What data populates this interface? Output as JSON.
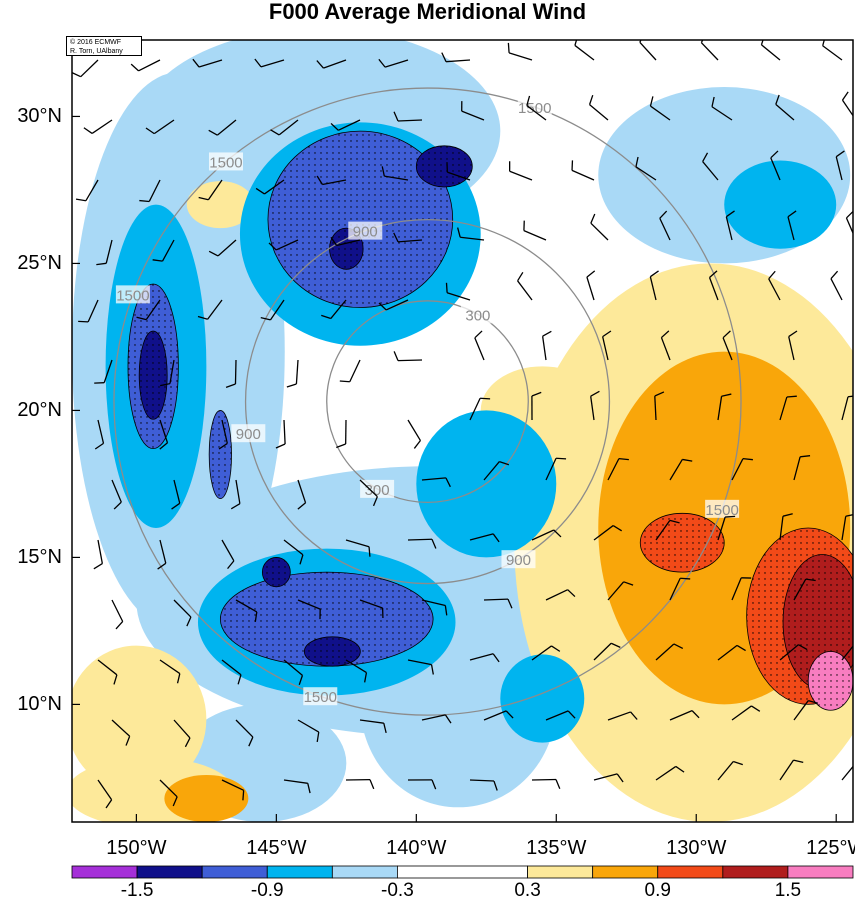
{
  "chart_data": {
    "type": "heatmap",
    "title": "F000 Average Meridional Wind",
    "credit_line1": "© 2016 ECMWF",
    "credit_line2": "R. Torn, UAlbany",
    "x_ticks": [
      "150°W",
      "145°W",
      "140°W",
      "135°W",
      "130°W",
      "125°W"
    ],
    "x_tick_values": [
      -150,
      -145,
      -140,
      -135,
      -130,
      -125
    ],
    "y_ticks": [
      "30°N",
      "25°N",
      "20°N",
      "15°N",
      "10°N"
    ],
    "y_tick_values": [
      30,
      25,
      20,
      15,
      10
    ],
    "xlim": [
      -152.3,
      -124.4
    ],
    "ylim": [
      6.0,
      32.6
    ],
    "colorbar": {
      "levels": [
        -1.8,
        -1.5,
        -1.2,
        -0.9,
        -0.6,
        -0.3,
        0.3,
        0.6,
        0.9,
        1.2,
        1.5,
        1.8
      ],
      "colors": [
        "#a52fd8",
        "#10108a",
        "#3f5ed6",
        "#00b4ef",
        "#a9d9f6",
        "#ffffff",
        "#fde99a",
        "#f9a60a",
        "#f24a18",
        "#b01d1d",
        "#f87dc0"
      ],
      "tick_labels": [
        "-1.5",
        "-0.9",
        "-0.3",
        "0.3",
        "0.9",
        "1.5"
      ],
      "tick_values": [
        -1.5,
        -0.9,
        -0.3,
        0.3,
        0.9,
        1.5
      ]
    },
    "contour_center": {
      "lon": -139.6,
      "lat": 20.3
    },
    "contour_labels": [
      "300",
      "900",
      "1500"
    ],
    "contour_radii_deg": [
      3.6,
      6.5,
      11.2
    ],
    "shaded_regions": [
      {
        "value": -0.45,
        "center": [
          -139.5,
          13.5
        ],
        "radii": [
          10.5,
          4.6
        ]
      },
      {
        "value": -0.45,
        "center": [
          -148.5,
          22.0
        ],
        "radii": [
          3.8,
          9.5
        ]
      },
      {
        "value": -0.45,
        "center": [
          -143.5,
          29.5
        ],
        "radii": [
          6.5,
          3.5
        ]
      },
      {
        "value": -0.45,
        "center": [
          -129.0,
          28.0
        ],
        "radii": [
          4.5,
          3.0
        ]
      },
      {
        "value": -0.45,
        "center": [
          -138.5,
          10.0
        ],
        "radii": [
          3.5,
          3.5
        ]
      },
      {
        "value": -0.45,
        "center": [
          -145.5,
          8.0
        ],
        "radii": [
          3.0,
          2.0
        ]
      },
      {
        "value": -0.75,
        "center": [
          -143.2,
          12.8
        ],
        "radii": [
          4.6,
          2.5
        ]
      },
      {
        "value": -0.75,
        "center": [
          -149.3,
          21.5
        ],
        "radii": [
          1.8,
          5.5
        ]
      },
      {
        "value": -0.75,
        "center": [
          -142.0,
          26.0
        ],
        "radii": [
          4.3,
          3.8
        ]
      },
      {
        "value": -0.75,
        "center": [
          -137.5,
          17.5
        ],
        "radii": [
          2.5,
          2.5
        ]
      },
      {
        "value": -0.75,
        "center": [
          -135.5,
          10.2
        ],
        "radii": [
          1.5,
          1.5
        ]
      },
      {
        "value": -0.75,
        "center": [
          -127.0,
          27.0
        ],
        "radii": [
          2.0,
          1.5
        ]
      },
      {
        "value": -1.05,
        "center": [
          -143.2,
          12.9
        ],
        "radii": [
          3.8,
          1.6
        ]
      },
      {
        "value": -1.05,
        "center": [
          -142.0,
          26.5
        ],
        "radii": [
          3.3,
          3.0
        ]
      },
      {
        "value": -1.05,
        "center": [
          -149.4,
          21.5
        ],
        "radii": [
          0.9,
          2.8
        ]
      },
      {
        "value": -1.05,
        "center": [
          -147.0,
          18.5
        ],
        "radii": [
          0.4,
          1.5
        ]
      },
      {
        "value": -1.35,
        "center": [
          -149.4,
          21.2
        ],
        "radii": [
          0.5,
          1.5
        ]
      },
      {
        "value": -1.35,
        "center": [
          -139.0,
          28.3
        ],
        "radii": [
          1.0,
          0.7
        ]
      },
      {
        "value": -1.35,
        "center": [
          -142.5,
          25.5
        ],
        "radii": [
          0.6,
          0.7
        ]
      },
      {
        "value": -1.35,
        "center": [
          -145.0,
          14.5
        ],
        "radii": [
          0.5,
          0.5
        ]
      },
      {
        "value": -1.35,
        "center": [
          -143.0,
          11.8
        ],
        "radii": [
          1.0,
          0.5
        ]
      },
      {
        "value": 0.45,
        "center": [
          -129.5,
          15.5
        ],
        "radii": [
          7.0,
          9.5
        ]
      },
      {
        "value": 0.45,
        "center": [
          -135.5,
          20.0
        ],
        "radii": [
          2.2,
          1.5
        ]
      },
      {
        "value": 0.45,
        "center": [
          -150.0,
          9.5
        ],
        "radii": [
          2.5,
          2.5
        ]
      },
      {
        "value": 0.45,
        "center": [
          -147.0,
          27.0
        ],
        "radii": [
          1.2,
          0.8
        ]
      },
      {
        "value": 0.45,
        "center": [
          -149.5,
          7.0
        ],
        "radii": [
          3.0,
          1.2
        ]
      },
      {
        "value": 0.75,
        "center": [
          -129.0,
          16.0
        ],
        "radii": [
          4.5,
          6.0
        ]
      },
      {
        "value": 0.75,
        "center": [
          -147.5,
          6.8
        ],
        "radii": [
          1.5,
          0.8
        ]
      },
      {
        "value": 1.05,
        "center": [
          -126.0,
          13.0
        ],
        "radii": [
          2.2,
          3.0
        ]
      },
      {
        "value": 1.05,
        "center": [
          -130.5,
          15.5
        ],
        "radii": [
          1.5,
          1.0
        ]
      },
      {
        "value": 1.35,
        "center": [
          -125.5,
          12.8
        ],
        "radii": [
          1.4,
          2.3
        ]
      },
      {
        "value": 1.65,
        "center": [
          -125.2,
          10.8
        ],
        "radii": [
          0.8,
          1.0
        ]
      }
    ]
  }
}
